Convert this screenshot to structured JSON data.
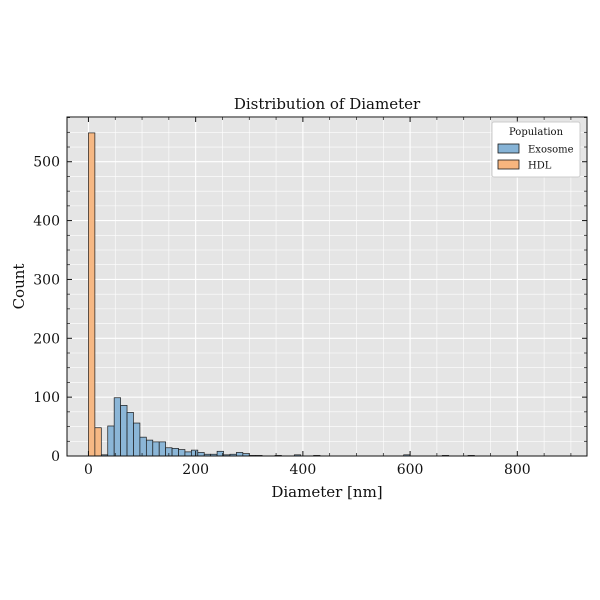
{
  "chart_data": {
    "type": "bar",
    "title": "Distribution of Diameter",
    "xlabel": "Diameter [nm]",
    "ylabel": "Count",
    "xlim": [
      -40,
      930
    ],
    "ylim": [
      0,
      576
    ],
    "x_ticks": [
      0,
      200,
      400,
      600,
      800
    ],
    "y_ticks": [
      0,
      100,
      200,
      300,
      400,
      500
    ],
    "grid": true,
    "legend_title": "Population",
    "legend_position": "top-right",
    "bin_width": 12,
    "series": [
      {
        "name": "Exosome",
        "color": "#86b3d6",
        "bins": [
          {
            "x0": 12,
            "x1": 24,
            "count": 1
          },
          {
            "x0": 24,
            "x1": 36,
            "count": 2
          },
          {
            "x0": 36,
            "x1": 48,
            "count": 51
          },
          {
            "x0": 48,
            "x1": 60,
            "count": 99
          },
          {
            "x0": 60,
            "x1": 72,
            "count": 86
          },
          {
            "x0": 72,
            "x1": 84,
            "count": 74
          },
          {
            "x0": 84,
            "x1": 96,
            "count": 56
          },
          {
            "x0": 96,
            "x1": 108,
            "count": 32
          },
          {
            "x0": 108,
            "x1": 120,
            "count": 27
          },
          {
            "x0": 120,
            "x1": 132,
            "count": 24
          },
          {
            "x0": 132,
            "x1": 144,
            "count": 24
          },
          {
            "x0": 144,
            "x1": 156,
            "count": 14
          },
          {
            "x0": 156,
            "x1": 168,
            "count": 13
          },
          {
            "x0": 168,
            "x1": 180,
            "count": 11
          },
          {
            "x0": 180,
            "x1": 192,
            "count": 7
          },
          {
            "x0": 192,
            "x1": 204,
            "count": 10
          },
          {
            "x0": 204,
            "x1": 216,
            "count": 6
          },
          {
            "x0": 216,
            "x1": 228,
            "count": 3
          },
          {
            "x0": 228,
            "x1": 240,
            "count": 3
          },
          {
            "x0": 240,
            "x1": 252,
            "count": 8
          },
          {
            "x0": 252,
            "x1": 264,
            "count": 2
          },
          {
            "x0": 264,
            "x1": 276,
            "count": 3
          },
          {
            "x0": 276,
            "x1": 288,
            "count": 6
          },
          {
            "x0": 288,
            "x1": 300,
            "count": 4
          },
          {
            "x0": 300,
            "x1": 312,
            "count": 1
          },
          {
            "x0": 312,
            "x1": 324,
            "count": 1
          },
          {
            "x0": 348,
            "x1": 360,
            "count": 1
          },
          {
            "x0": 384,
            "x1": 396,
            "count": 2
          },
          {
            "x0": 420,
            "x1": 432,
            "count": 1
          },
          {
            "x0": 588,
            "x1": 600,
            "count": 2
          },
          {
            "x0": 660,
            "x1": 672,
            "count": 1
          },
          {
            "x0": 708,
            "x1": 720,
            "count": 1
          }
        ]
      },
      {
        "name": "HDL",
        "color": "#f7b57e",
        "bins": [
          {
            "x0": 0,
            "x1": 12,
            "count": 549
          },
          {
            "x0": 12,
            "x1": 24,
            "count": 48
          }
        ]
      }
    ]
  }
}
